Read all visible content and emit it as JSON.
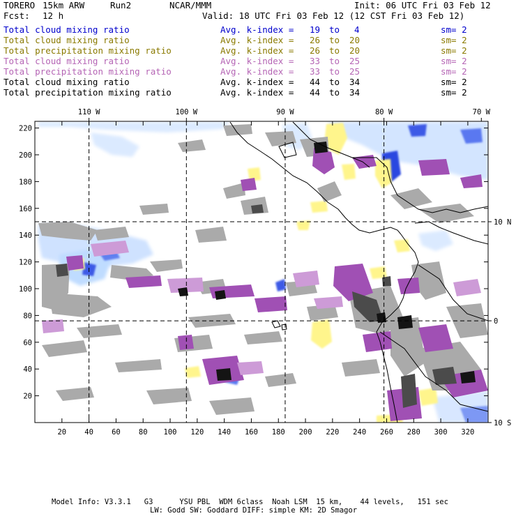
{
  "header": {
    "model": "TORERO",
    "resolution": "15km ARW",
    "run": "Run2",
    "org": "NCAR/MMM",
    "init": "Init: 06 UTC Fri 03 Feb 12",
    "fcst_label": "Fcst:",
    "fcst_value": "12 h",
    "valid": "Valid: 18 UTC Fri 03 Feb 12 (12 CST Fri 03 Feb 12)"
  },
  "legend_rows": [
    {
      "field": "Total cloud mixing ratio",
      "kindex": "Avg. k-index =",
      "from": "19",
      "to_word": "to",
      "to": "4",
      "sm": "sm= 2",
      "color": "#0000cc"
    },
    {
      "field": "Total cloud mixing ratio",
      "kindex": "Avg. k-index =",
      "from": "26",
      "to_word": "to",
      "to": "20",
      "sm": "sm= 2",
      "color": "#8a7a00"
    },
    {
      "field": "Total precipitation mixing ratio",
      "kindex": "Avg. k-index =",
      "from": "26",
      "to_word": "to",
      "to": "20",
      "sm": "sm= 2",
      "color": "#8a7a00"
    },
    {
      "field": "Total cloud mixing ratio",
      "kindex": "Avg. k-index =",
      "from": "33",
      "to_word": "to",
      "to": "25",
      "sm": "sm= 2",
      "color": "#b565b5"
    },
    {
      "field": "Total precipitation mixing ratio",
      "kindex": "Avg. k-index =",
      "from": "33",
      "to_word": "to",
      "to": "25",
      "sm": "sm= 2",
      "color": "#b565b5"
    },
    {
      "field": "Total cloud mixing ratio",
      "kindex": "Avg. k-index =",
      "from": "44",
      "to_word": "to",
      "to": "34",
      "sm": "sm= 2",
      "color": "#000000"
    },
    {
      "field": "Total precipitation mixing ratio",
      "kindex": "Avg. k-index =",
      "from": "44",
      "to_word": "to",
      "to": "34",
      "sm": "sm= 2",
      "color": "#000000"
    }
  ],
  "chart_data": {
    "type": "heatmap",
    "x_ticks": [
      20,
      40,
      60,
      80,
      100,
      120,
      140,
      160,
      180,
      200,
      220,
      240,
      260,
      280,
      300,
      320
    ],
    "y_ticks": [
      20,
      40,
      60,
      80,
      100,
      120,
      140,
      160,
      180,
      200,
      220
    ],
    "xlim": [
      0,
      335
    ],
    "ylim": [
      0,
      225
    ],
    "lon_labels": [
      {
        "text": "110 W",
        "x": 40
      },
      {
        "text": "100 W",
        "x": 112
      },
      {
        "text": "90 W",
        "x": 185
      },
      {
        "text": "80 W",
        "x": 258
      },
      {
        "text": "70 W",
        "x": 330
      }
    ],
    "lat_labels": [
      {
        "text": "10 N",
        "y": 150
      },
      {
        "text": "0",
        "y": 76
      },
      {
        "text": "10 S",
        "y": 0
      }
    ],
    "grid_x": [
      40,
      112,
      185,
      258
    ],
    "grid_y": [
      76,
      150
    ],
    "grid": true,
    "colors": {
      "light_blue": "#bfdcff",
      "blue": "#3c5ae6",
      "dark_blue": "#1428c8",
      "yellow": "#fff58c",
      "purple": "#a050b4",
      "light_purple": "#cd9bd7",
      "gray": "#aaaaaa",
      "dark_gray": "#4b4b4b",
      "black": "#141414"
    }
  },
  "footer": {
    "line1": "Model Info: V3.3.1   G3      YSU PBL  WDM 6class  Noah LSM  15 km,    44 levels,   151 sec",
    "line2": "LW: Godd SW: Goddard DIFF: simple KM: 2D Smagor"
  }
}
